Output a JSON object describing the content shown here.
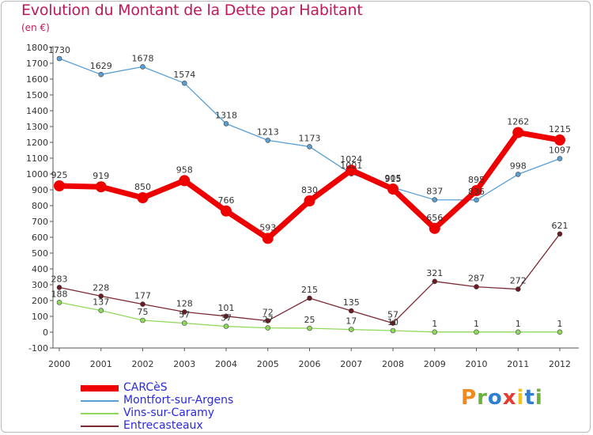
{
  "title": "Evolution du Montant de la Dette par Habitant",
  "subtitle": "(en €)",
  "brand": {
    "text": "Proxiti",
    "colors": [
      "#f08a1c",
      "#6ab23c",
      "#2f7fd0",
      "#e63b2e",
      "#f2c21a",
      "#2f7fd0",
      "#6ab23c"
    ]
  },
  "chart_data": {
    "type": "line",
    "x": [
      "2000",
      "2001",
      "2002",
      "2003",
      "2004",
      "2005",
      "2006",
      "2007",
      "2008",
      "2009",
      "2010",
      "2011",
      "2012"
    ],
    "ylim": [
      -100,
      1800
    ],
    "yticks": [
      -100,
      0,
      100,
      200,
      300,
      400,
      500,
      600,
      700,
      800,
      900,
      1000,
      1100,
      1200,
      1300,
      1400,
      1500,
      1600,
      1700,
      1800
    ],
    "grid": false,
    "legend_position": "bottom-left",
    "series": [
      {
        "name": "CARCèS",
        "color": "#ee0000",
        "values": [
          925,
          919,
          850,
          958,
          766,
          593,
          830,
          1024,
          905,
          656,
          895,
          1262,
          1215
        ]
      },
      {
        "name": "Montfort-sur-Argens",
        "color": "#5a9fd4",
        "values": [
          1730,
          1629,
          1678,
          1574,
          1318,
          1213,
          1173,
          1001,
          915,
          837,
          836,
          998,
          1097
        ]
      },
      {
        "name": "Vins-sur-Caramy",
        "color": "#8fd95a",
        "values": [
          188,
          137,
          75,
          57,
          37,
          27,
          25,
          17,
          10,
          1,
          1,
          1,
          1
        ]
      },
      {
        "name": "Entrecasteaux",
        "color": "#7b2a33",
        "values": [
          283,
          228,
          177,
          128,
          101,
          72,
          215,
          135,
          57,
          321,
          287,
          272,
          621
        ]
      }
    ]
  }
}
